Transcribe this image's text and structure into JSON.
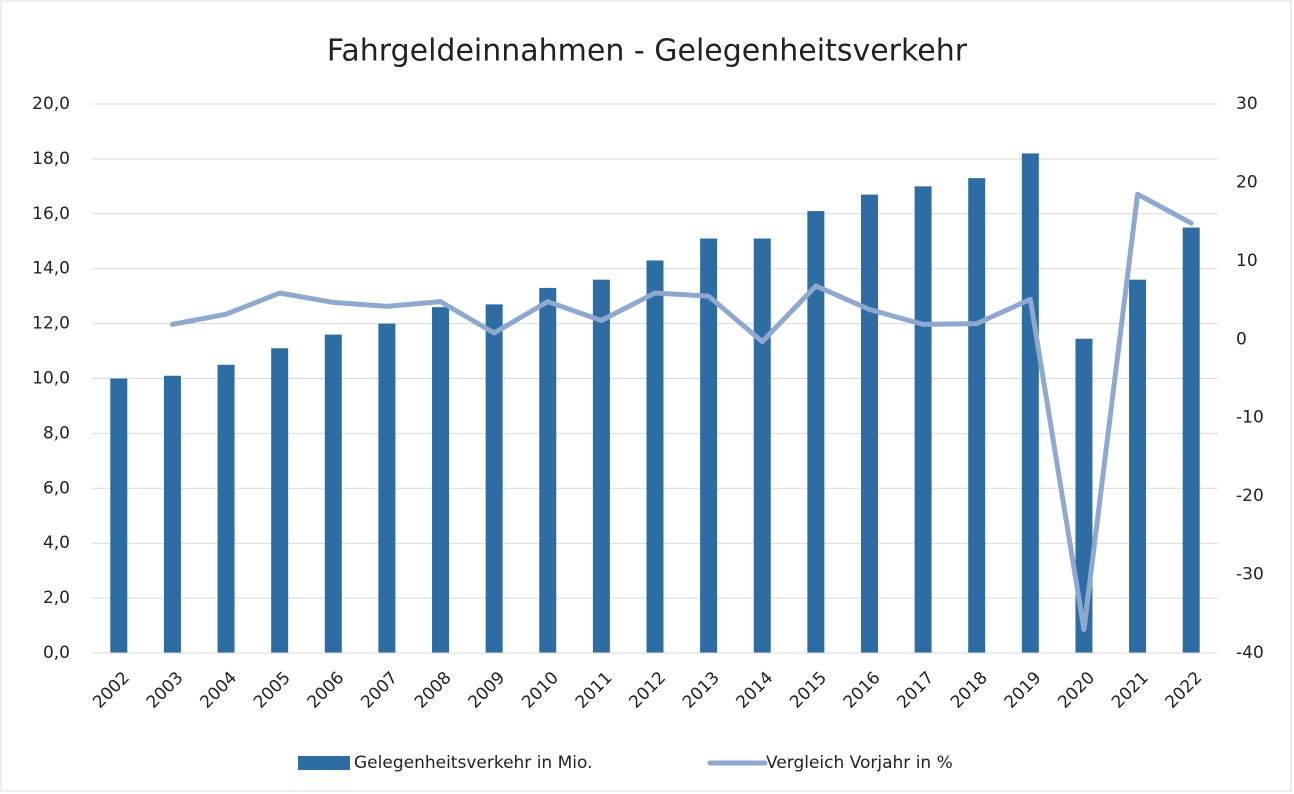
{
  "chart_data": {
    "type": "bar",
    "title": "Fahrgeldeinnahmen - Gelegenheitsverkehr",
    "categories": [
      "2002",
      "2003",
      "2004",
      "2005",
      "2006",
      "2007",
      "2008",
      "2009",
      "2010",
      "2011",
      "2012",
      "2013",
      "2014",
      "2015",
      "2016",
      "2017",
      "2018",
      "2019",
      "2020",
      "2021",
      "2022"
    ],
    "series": [
      {
        "name": "Gelegenheitsverkehr in Mio.",
        "type": "bar",
        "color": "#2e6ca4",
        "values": [
          10.0,
          10.1,
          10.5,
          11.1,
          11.6,
          12.0,
          12.6,
          12.7,
          13.3,
          13.6,
          14.3,
          15.1,
          15.1,
          16.1,
          16.7,
          17.0,
          17.3,
          18.2,
          11.45,
          13.6,
          15.5
        ]
      },
      {
        "name": "Vergleich Vorjahr in %",
        "type": "line",
        "axis": "y2",
        "color": "#8fa8d0",
        "values": [
          null,
          1.9,
          3.2,
          5.9,
          4.7,
          4.2,
          4.8,
          0.8,
          4.8,
          2.4,
          5.9,
          5.5,
          -0.3,
          6.8,
          3.8,
          1.9,
          2.0,
          5.1,
          -37,
          18.5,
          14.8
        ]
      }
    ],
    "ylim": [
      0,
      20
    ],
    "yticks": [
      {
        "value": 0,
        "label": "0,0"
      },
      {
        "value": 2,
        "label": "2,0"
      },
      {
        "value": 4,
        "label": "4,0"
      },
      {
        "value": 6,
        "label": "6,0"
      },
      {
        "value": 8,
        "label": "8,0"
      },
      {
        "value": 10,
        "label": "10,0"
      },
      {
        "value": 12,
        "label": "12,0"
      },
      {
        "value": 14,
        "label": "14,0"
      },
      {
        "value": 16,
        "label": "16,0"
      },
      {
        "value": 18,
        "label": "18,0"
      },
      {
        "value": 20,
        "label": "20,0"
      }
    ],
    "y2lim": [
      -40,
      30
    ],
    "y2ticks": [
      -40,
      -30,
      -20,
      -10,
      0,
      10,
      20,
      30
    ],
    "grid": true,
    "legend": "bottom"
  }
}
